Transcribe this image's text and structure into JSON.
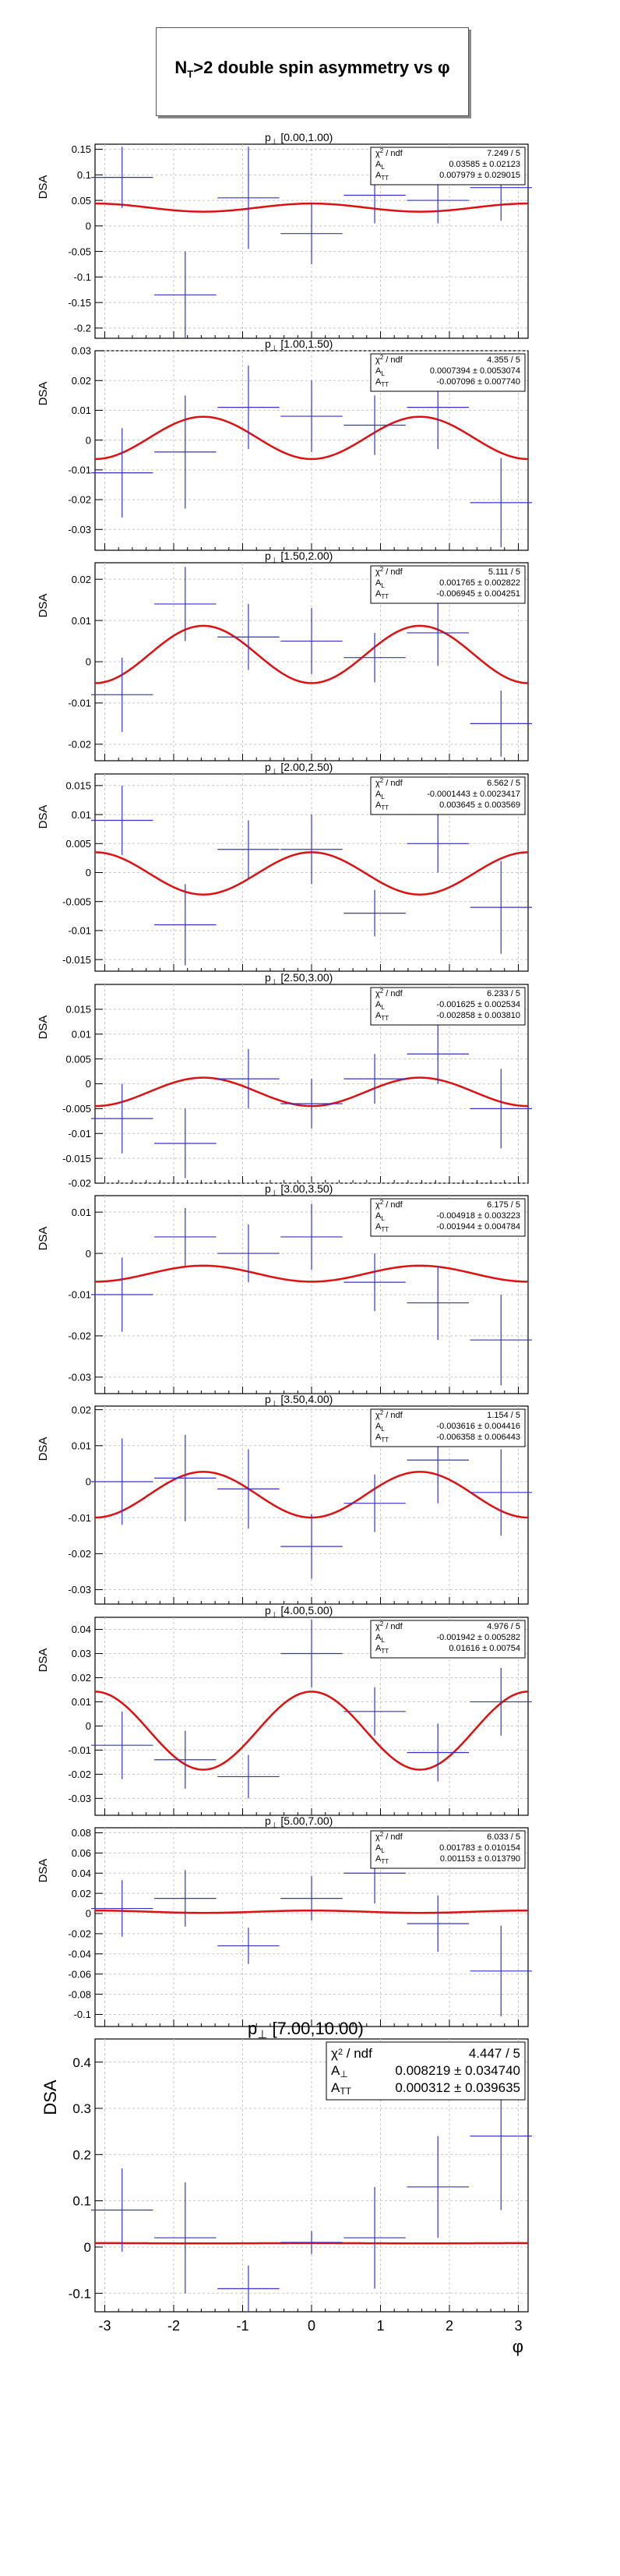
{
  "title": {
    "prefix": "N",
    "subscript": "T",
    "rest": ">2 double spin asymmetry vs φ"
  },
  "colors": {
    "data": "#3333cc",
    "fit": "#e01010",
    "grid": "#c8c8c8",
    "frame": "#000000"
  },
  "chart_data": [
    {
      "type": "scatter",
      "ylabel": "DSA",
      "bin_label_prefix": "p",
      "bin_label_sub": "⊥",
      "bin_label": "[0.00,1.00)",
      "xlim": [
        -3.1416,
        3.1416
      ],
      "ylim": [
        -0.22,
        0.16
      ],
      "yticks": [
        0.15,
        0.1,
        0.05,
        0,
        -0.05,
        -0.1,
        -0.15,
        -0.2
      ],
      "grid": true,
      "legend_position": "top-right",
      "x": [
        -2.749,
        -1.833,
        -0.916,
        0.0,
        0.916,
        1.833,
        2.749
      ],
      "y": [
        0.095,
        -0.135,
        0.055,
        -0.015,
        0.06,
        0.05,
        0.075
      ],
      "yerr": [
        0.06,
        0.085,
        0.1,
        0.06,
        0.055,
        0.045,
        0.065
      ],
      "fit": {
        "AL": 0.03585,
        "ATT": 0.007979
      },
      "stats": [
        {
          "label_main": "χ",
          "label_sup": "2",
          "label_rest": " / ndf",
          "value": "7.249 / 5"
        },
        {
          "label_main": "A",
          "label_sub": "L",
          "value": "0.03585 ± 0.02123"
        },
        {
          "label_main": "A",
          "label_sub": "TT",
          "value": "0.007979 ± 0.029015"
        }
      ]
    },
    {
      "type": "scatter",
      "ylabel": "DSA",
      "bin_label_prefix": "p",
      "bin_label_sub": "⊥",
      "bin_label": "[1.00,1.50)",
      "xlim": [
        -3.1416,
        3.1416
      ],
      "ylim": [
        -0.037,
        0.03
      ],
      "yticks": [
        0.03,
        0.02,
        0.01,
        0,
        -0.01,
        -0.02,
        -0.03
      ],
      "grid": true,
      "legend_position": "top-right",
      "x": [
        -2.749,
        -1.833,
        -0.916,
        0.0,
        0.916,
        1.833,
        2.749
      ],
      "y": [
        -0.011,
        -0.004,
        0.011,
        0.008,
        0.005,
        0.011,
        -0.021
      ],
      "yerr": [
        0.015,
        0.019,
        0.014,
        0.012,
        0.01,
        0.014,
        0.015
      ],
      "fit": {
        "AL": 0.0007394,
        "ATT": -0.007096
      },
      "stats": [
        {
          "label_main": "χ",
          "label_sup": "2",
          "label_rest": " / ndf",
          "value": "4.355 / 5"
        },
        {
          "label_main": "A",
          "label_sub": "L",
          "value": "0.0007394 ± 0.0053074"
        },
        {
          "label_main": "A",
          "label_sub": "TT",
          "value": "-0.007096 ± 0.007740"
        }
      ]
    },
    {
      "type": "scatter",
      "ylabel": "DSA",
      "bin_label_prefix": "p",
      "bin_label_sub": "⊥",
      "bin_label": "[1.50,2.00)",
      "xlim": [
        -3.1416,
        3.1416
      ],
      "ylim": [
        -0.024,
        0.024
      ],
      "yticks": [
        0.02,
        0.01,
        0,
        -0.01,
        -0.02
      ],
      "grid": true,
      "legend_position": "top-right",
      "x": [
        -2.749,
        -1.833,
        -0.916,
        0.0,
        0.916,
        1.833,
        2.749
      ],
      "y": [
        -0.008,
        0.014,
        0.006,
        0.005,
        0.001,
        0.007,
        -0.015
      ],
      "yerr": [
        0.009,
        0.009,
        0.008,
        0.008,
        0.006,
        0.008,
        0.008
      ],
      "fit": {
        "AL": 0.001765,
        "ATT": -0.006945
      },
      "stats": [
        {
          "label_main": "χ",
          "label_sup": "2",
          "label_rest": " / ndf",
          "value": "5.111 / 5"
        },
        {
          "label_main": "A",
          "label_sub": "L",
          "value": "0.001765 ± 0.002822"
        },
        {
          "label_main": "A",
          "label_sub": "TT",
          "value": "-0.006945 ± 0.004251"
        }
      ]
    },
    {
      "type": "scatter",
      "ylabel": "DSA",
      "bin_label_prefix": "p",
      "bin_label_sub": "⊥",
      "bin_label": "[2.00,2.50)",
      "xlim": [
        -3.1416,
        3.1416
      ],
      "ylim": [
        -0.017,
        0.017
      ],
      "yticks": [
        0.015,
        0.01,
        0.005,
        0,
        -0.005,
        -0.01,
        -0.015
      ],
      "grid": true,
      "legend_position": "top-right",
      "x": [
        -2.749,
        -1.833,
        -0.916,
        0.0,
        0.916,
        1.833,
        2.749
      ],
      "y": [
        0.009,
        -0.009,
        0.004,
        0.004,
        -0.007,
        0.005,
        -0.006
      ],
      "yerr": [
        0.006,
        0.007,
        0.005,
        0.006,
        0.004,
        0.005,
        0.008
      ],
      "fit": {
        "AL": -0.0001443,
        "ATT": 0.003645
      },
      "stats": [
        {
          "label_main": "χ",
          "label_sup": "2",
          "label_rest": " / ndf",
          "value": "6.562 / 5"
        },
        {
          "label_main": "A",
          "label_sub": "L",
          "value": "-0.0001443 ± 0.0023417"
        },
        {
          "label_main": "A",
          "label_sub": "TT",
          "value": "0.003645 ± 0.003569"
        }
      ]
    },
    {
      "type": "scatter",
      "ylabel": "DSA",
      "bin_label_prefix": "p",
      "bin_label_sub": "⊥",
      "bin_label": "[2.50,3.00)",
      "xlim": [
        -3.1416,
        3.1416
      ],
      "ylim": [
        -0.02,
        0.02
      ],
      "yticks": [
        0.015,
        0.01,
        0.005,
        0,
        -0.005,
        -0.01,
        -0.015,
        -0.02
      ],
      "grid": true,
      "legend_position": "top-right",
      "x": [
        -2.749,
        -1.833,
        -0.916,
        0.0,
        0.916,
        1.833,
        2.749
      ],
      "y": [
        -0.007,
        -0.012,
        0.001,
        -0.004,
        0.001,
        0.006,
        -0.005
      ],
      "yerr": [
        0.007,
        0.007,
        0.006,
        0.005,
        0.005,
        0.006,
        0.008
      ],
      "fit": {
        "AL": -0.001625,
        "ATT": -0.002858
      },
      "stats": [
        {
          "label_main": "χ",
          "label_sup": "2",
          "label_rest": " / ndf",
          "value": "6.233 / 5"
        },
        {
          "label_main": "A",
          "label_sub": "L",
          "value": "-0.001625 ± 0.002534"
        },
        {
          "label_main": "A",
          "label_sub": "TT",
          "value": "-0.002858 ± 0.003810"
        }
      ]
    },
    {
      "type": "scatter",
      "ylabel": "DSA",
      "bin_label_prefix": "p",
      "bin_label_sub": "⊥",
      "bin_label": "[3.00,3.50)",
      "xlim": [
        -3.1416,
        3.1416
      ],
      "ylim": [
        -0.034,
        0.014
      ],
      "yticks": [
        0.01,
        0,
        -0.01,
        -0.02,
        -0.03
      ],
      "grid": true,
      "legend_position": "top-right",
      "x": [
        -2.749,
        -1.833,
        -0.916,
        0.0,
        0.916,
        1.833,
        2.749
      ],
      "y": [
        -0.01,
        0.004,
        0.0,
        0.004,
        -0.007,
        -0.012,
        -0.021
      ],
      "yerr": [
        0.009,
        0.007,
        0.007,
        0.008,
        0.007,
        0.009,
        0.011
      ],
      "fit": {
        "AL": -0.004918,
        "ATT": -0.001944
      },
      "stats": [
        {
          "label_main": "χ",
          "label_sup": "2",
          "label_rest": " / ndf",
          "value": "6.175 / 5"
        },
        {
          "label_main": "A",
          "label_sub": "L",
          "value": "-0.004918 ± 0.003223"
        },
        {
          "label_main": "A",
          "label_sub": "TT",
          "value": "-0.001944 ± 0.004784"
        }
      ]
    },
    {
      "type": "scatter",
      "ylabel": "DSA",
      "bin_label_prefix": "p",
      "bin_label_sub": "⊥",
      "bin_label": "[3.50,4.00)",
      "xlim": [
        -3.1416,
        3.1416
      ],
      "ylim": [
        -0.034,
        0.021
      ],
      "yticks": [
        0.02,
        0.01,
        0,
        -0.01,
        -0.02,
        -0.03
      ],
      "grid": true,
      "legend_position": "top-right",
      "x": [
        -2.749,
        -1.833,
        -0.916,
        0.0,
        0.916,
        1.833,
        2.749
      ],
      "y": [
        0.0,
        0.001,
        -0.002,
        -0.018,
        -0.006,
        0.006,
        -0.003
      ],
      "yerr": [
        0.012,
        0.012,
        0.011,
        0.009,
        0.008,
        0.012,
        0.012
      ],
      "fit": {
        "AL": -0.003616,
        "ATT": -0.006358
      },
      "stats": [
        {
          "label_main": "χ",
          "label_sup": "2",
          "label_rest": " / ndf",
          "value": "1.154 / 5"
        },
        {
          "label_main": "A",
          "label_sub": "L",
          "value": "-0.003616 ± 0.004416"
        },
        {
          "label_main": "A",
          "label_sub": "TT",
          "value": "-0.006358 ± 0.006443"
        }
      ]
    },
    {
      "type": "scatter",
      "ylabel": "DSA",
      "bin_label_prefix": "p",
      "bin_label_sub": "⊥",
      "bin_label": "[4.00,5.00)",
      "xlim": [
        -3.1416,
        3.1416
      ],
      "ylim": [
        -0.037,
        0.045
      ],
      "yticks": [
        0.04,
        0.03,
        0.02,
        0.01,
        0,
        -0.01,
        -0.02,
        -0.03
      ],
      "grid": true,
      "legend_position": "top-right",
      "x": [
        -2.749,
        -1.833,
        -0.916,
        0.0,
        0.916,
        1.833,
        2.749
      ],
      "y": [
        -0.008,
        -0.014,
        -0.021,
        0.03,
        0.006,
        -0.011,
        0.01
      ],
      "yerr": [
        0.014,
        0.012,
        0.009,
        0.014,
        0.01,
        0.012,
        0.014
      ],
      "fit": {
        "AL": -0.001942,
        "ATT": 0.01616
      },
      "stats": [
        {
          "label_main": "χ",
          "label_sup": "2",
          "label_rest": " / ndf",
          "value": "4.976 / 5"
        },
        {
          "label_main": "A",
          "label_sub": "L",
          "value": "-0.001942 ± 0.005282"
        },
        {
          "label_main": "A",
          "label_sub": "TT",
          "value": "0.01616 ± 0.00754"
        }
      ]
    },
    {
      "type": "scatter",
      "ylabel": "DSA",
      "bin_label_prefix": "p",
      "bin_label_sub": "⊥",
      "bin_label": "[5.00,7.00)",
      "xlim": [
        -3.1416,
        3.1416
      ],
      "ylim": [
        -0.112,
        0.085
      ],
      "yticks": [
        0.08,
        0.06,
        0.04,
        0.02,
        0,
        -0.02,
        -0.04,
        -0.06,
        -0.08,
        -0.1
      ],
      "grid": true,
      "legend_position": "top-right",
      "x": [
        -2.749,
        -1.833,
        -0.916,
        0.0,
        0.916,
        1.833,
        2.749
      ],
      "y": [
        0.005,
        0.015,
        -0.032,
        0.015,
        0.04,
        -0.01,
        -0.057
      ],
      "yerr": [
        0.028,
        0.028,
        0.018,
        0.022,
        0.03,
        0.028,
        0.045
      ],
      "fit": {
        "AL": 0.001783,
        "ATT": 0.001153
      },
      "stats": [
        {
          "label_main": "χ",
          "label_sup": "2",
          "label_rest": " / ndf",
          "value": "6.033 / 5"
        },
        {
          "label_main": "A",
          "label_sub": "L",
          "value": "0.001783 ± 0.010154"
        },
        {
          "label_main": "A",
          "label_sub": "TT",
          "value": "0.001153 ± 0.013790"
        }
      ]
    },
    {
      "type": "scatter",
      "ylabel": "DSA",
      "bin_label_prefix": "p",
      "bin_label_sub": "⊥",
      "bin_label": "[7.00,10.00)",
      "xlabel": "φ",
      "xlim": [
        -3.1416,
        3.1416
      ],
      "ylim": [
        -0.14,
        0.45
      ],
      "yticks": [
        0.4,
        0.3,
        0.2,
        0.1,
        0,
        -0.1
      ],
      "xticks": [
        -3,
        -2,
        -1,
        0,
        1,
        2,
        3
      ],
      "grid": true,
      "legend_position": "top-right",
      "x": [
        -2.749,
        -1.833,
        -0.916,
        0.0,
        0.916,
        1.833,
        2.749
      ],
      "y": [
        0.08,
        0.02,
        -0.09,
        0.01,
        0.02,
        0.13,
        0.24
      ],
      "yerr": [
        0.09,
        0.12,
        0.05,
        0.025,
        0.11,
        0.11,
        0.16
      ],
      "fit": {
        "AL": 0.008219,
        "ATT": 0.000312
      },
      "stats": [
        {
          "label_main": "χ",
          "label_sup": "2",
          "label_rest": " / ndf",
          "value": "4.447 / 5"
        },
        {
          "label_main": "A",
          "label_sub": "⊥",
          "value": "0.008219 ± 0.034740"
        },
        {
          "label_main": "A",
          "label_sub": "TT",
          "value": "0.000312 ± 0.039635"
        }
      ]
    }
  ]
}
